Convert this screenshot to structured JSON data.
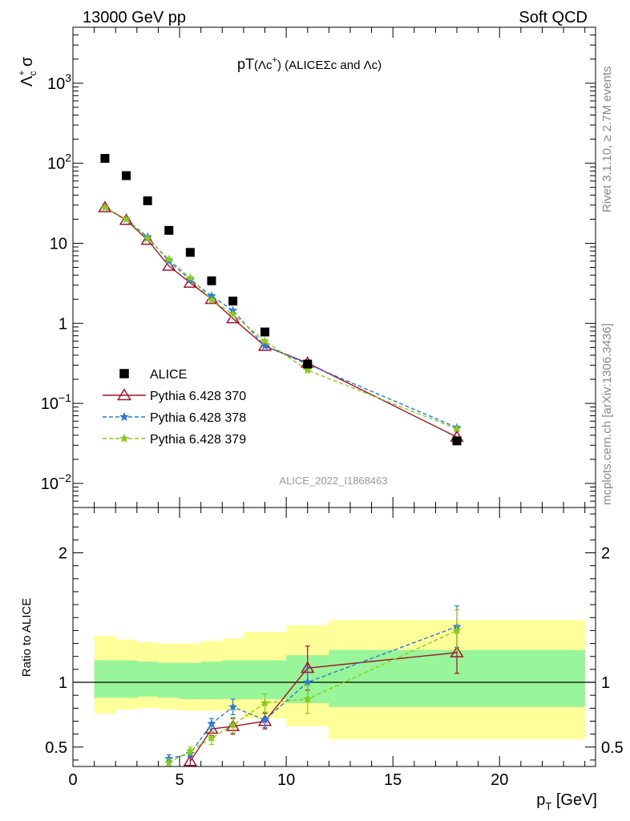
{
  "header": {
    "left": "13000 GeV pp",
    "right": "Soft QCD"
  },
  "side_labels": {
    "top": "Rivet 3.1.10, ≥ 2.7M events",
    "bottom": "mcplots.cern.ch [arXiv:1306.3436]"
  },
  "watermark": "ALICE_2022_I1868463",
  "chart_data": [
    {
      "type": "scatter",
      "panel": "main",
      "title_parts": {
        "prefix": "pT",
        "paren": "(Λc",
        "sup": "+",
        "close": ")",
        "rest": " (ALICEΣc and Λc)"
      },
      "ylabel_parts": {
        "base": "Λ",
        "sup": "+",
        "sub": "c",
        "tail": " σ"
      },
      "yscale": "log",
      "ylim": [
        0.005,
        5000
      ],
      "xlim": [
        0,
        24.5
      ],
      "y_ticks": [
        {
          "v": 0.01,
          "base": "10",
          "exp": "−2"
        },
        {
          "v": 0.1,
          "base": "10",
          "exp": "−1"
        },
        {
          "v": 1,
          "base": "1",
          "exp": ""
        },
        {
          "v": 10,
          "base": "10",
          "exp": ""
        },
        {
          "v": 100,
          "base": "10",
          "exp": "2"
        },
        {
          "v": 1000,
          "base": "10",
          "exp": "3"
        }
      ],
      "series": [
        {
          "name": "ALICE",
          "style": "data",
          "color": "#000000",
          "x": [
            1.5,
            2.5,
            3.5,
            4.5,
            5.5,
            6.5,
            7.5,
            9,
            11,
            18
          ],
          "y": [
            115,
            70,
            34,
            14.5,
            7.7,
            3.4,
            1.9,
            0.78,
            0.31,
            0.034
          ]
        },
        {
          "name": "Pythia 6.428 370",
          "style": "triangle",
          "color": "#a0132a",
          "x": [
            1.5,
            2.5,
            3.5,
            4.5,
            5.5,
            6.5,
            7.5,
            9,
            11,
            18
          ],
          "y": [
            28,
            19.5,
            11,
            5.2,
            3.2,
            2.0,
            1.15,
            0.52,
            0.32,
            0.038
          ]
        },
        {
          "name": "Pythia 6.428 378",
          "style": "star",
          "color": "#2a7ad8",
          "x": [
            1.5,
            2.5,
            3.5,
            4.5,
            5.5,
            6.5,
            7.5,
            9,
            11,
            18
          ],
          "y": [
            28,
            20,
            12,
            6.0,
            3.5,
            2.2,
            1.45,
            0.52,
            0.31,
            0.05
          ]
        },
        {
          "name": "Pythia 6.428 379",
          "style": "star",
          "color": "#8cc81e",
          "x": [
            1.5,
            2.5,
            3.5,
            4.5,
            5.5,
            6.5,
            7.5,
            9,
            11,
            18
          ],
          "y": [
            28,
            20,
            11.5,
            6.3,
            3.7,
            1.95,
            1.3,
            0.6,
            0.26,
            0.048
          ]
        }
      ]
    },
    {
      "type": "scatter",
      "panel": "ratio",
      "ylabel": "Ratio to ALICE",
      "xlabel_parts": {
        "base": "p",
        "sub": "T",
        "rest": " [GeV]"
      },
      "ylim": [
        0.35,
        2.35
      ],
      "xlim": [
        0,
        24.5
      ],
      "x_ticks": [
        0,
        5,
        10,
        15,
        20
      ],
      "y_ticks": [
        0.5,
        1,
        2
      ],
      "reference": 1,
      "bands": {
        "edges": [
          1,
          2,
          3,
          4,
          5,
          6,
          7,
          8,
          10,
          12,
          24
        ],
        "inner_lo": [
          0.88,
          0.88,
          0.89,
          0.88,
          0.87,
          0.87,
          0.87,
          0.87,
          0.84,
          0.81
        ],
        "inner_hi": [
          1.17,
          1.17,
          1.16,
          1.15,
          1.15,
          1.16,
          1.17,
          1.17,
          1.21,
          1.25
        ],
        "outer_lo": [
          0.76,
          0.79,
          0.8,
          0.79,
          0.78,
          0.78,
          0.78,
          0.72,
          0.66,
          0.56
        ],
        "outer_hi": [
          1.36,
          1.33,
          1.31,
          1.3,
          1.3,
          1.32,
          1.34,
          1.39,
          1.44,
          1.48
        ],
        "inner_color": "#99f599",
        "outer_color": "#ffff99"
      },
      "series": [
        {
          "name": "Pythia 6.428 370",
          "style": "triangle",
          "color": "#a0132a",
          "x": [
            5.5,
            6.5,
            7.5,
            9,
            11,
            18
          ],
          "y": [
            0.39,
            0.64,
            0.66,
            0.7,
            1.11,
            1.23
          ],
          "err": [
            0.04,
            0.05,
            0.06,
            0.06,
            0.17,
            0.16
          ]
        },
        {
          "name": "Pythia 6.428 378",
          "style": "star",
          "color": "#2a7ad8",
          "x": [
            4.5,
            5.5,
            6.5,
            7.5,
            9,
            11,
            18
          ],
          "y": [
            0.41,
            0.45,
            0.68,
            0.81,
            0.71,
            1.0,
            1.43
          ],
          "err": [
            0.03,
            0.03,
            0.04,
            0.06,
            0.06,
            0.12,
            0.16
          ]
        },
        {
          "name": "Pythia 6.428 379",
          "style": "star",
          "color": "#8cc81e",
          "x": [
            4.5,
            5.5,
            6.5,
            7.5,
            9,
            11,
            18
          ],
          "y": [
            0.38,
            0.47,
            0.57,
            0.67,
            0.84,
            0.87,
            1.4
          ],
          "err": [
            0.03,
            0.03,
            0.05,
            0.06,
            0.07,
            0.11,
            0.16
          ]
        }
      ]
    }
  ]
}
